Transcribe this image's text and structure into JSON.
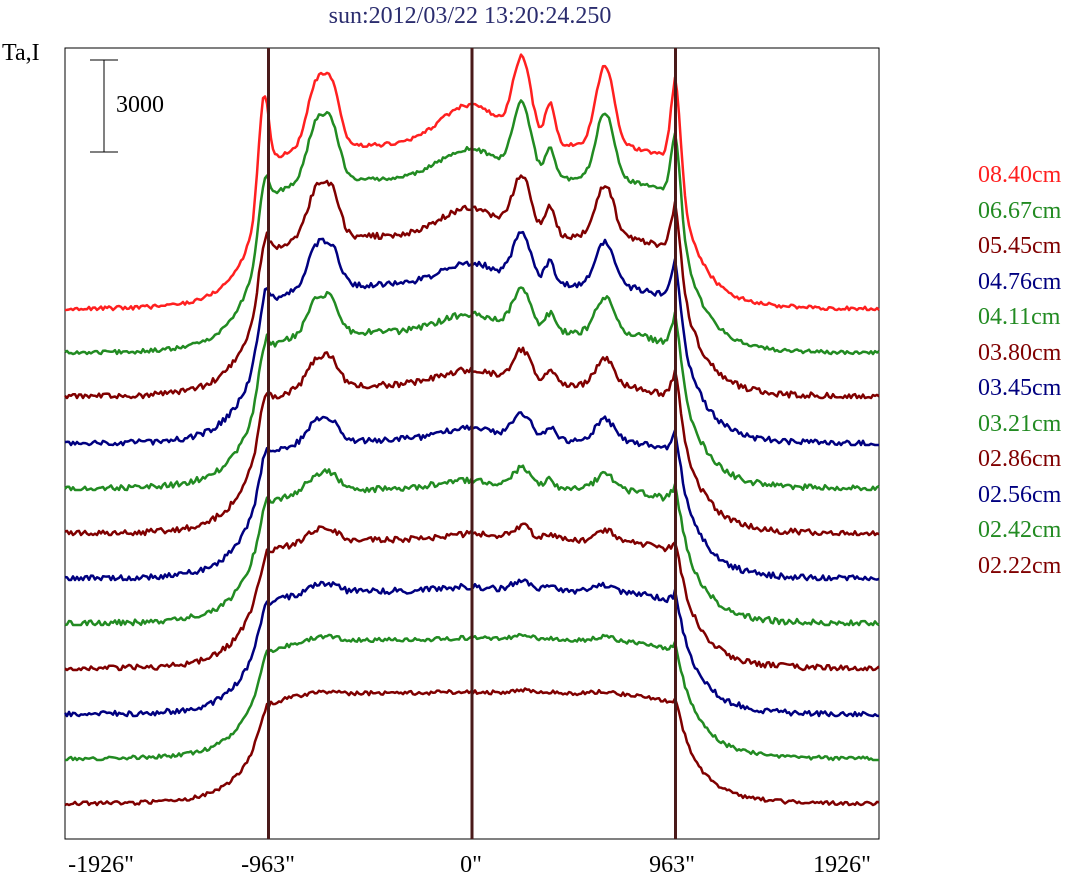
{
  "chart_data": {
    "type": "line",
    "title": "sun:2012/03/22 13:20:24.250",
    "ylabel": "Ta,I",
    "scale_bar_label": "3000",
    "scale_bar_value": 3000,
    "x_ticks": [
      "-1926\"",
      "-963\"",
      "0\"",
      "963\"",
      "1926\""
    ],
    "x_tick_values": [
      -1926,
      -963,
      0,
      963,
      1926
    ],
    "xlim": [
      -1926,
      1926
    ],
    "vertical_lines_at": [
      -963,
      0,
      963
    ],
    "legend": [
      {
        "label": "08.40cm",
        "color": "#ff2020"
      },
      {
        "label": "06.67cm",
        "color": "#228b22"
      },
      {
        "label": "05.45cm",
        "color": "#800000"
      },
      {
        "label": "04.76cm",
        "color": "#000080"
      },
      {
        "label": "04.11cm",
        "color": "#228b22"
      },
      {
        "label": "03.80cm",
        "color": "#800000"
      },
      {
        "label": "03.45cm",
        "color": "#000080"
      },
      {
        "label": "03.21cm",
        "color": "#228b22"
      },
      {
        "label": "02.86cm",
        "color": "#800000"
      },
      {
        "label": "02.56cm",
        "color": "#000080"
      },
      {
        "label": "02.42cm",
        "color": "#228b22"
      },
      {
        "label": "02.22cm",
        "color": "#800000"
      }
    ],
    "series": [
      {
        "color": "#ff2020",
        "baseline": 310,
        "disk": 165,
        "limb": 150,
        "peakL": 90,
        "peakR": 85,
        "ar": [
          60,
          40,
          80,
          80
        ],
        "noise": 2
      },
      {
        "color": "#228b22",
        "baseline": 354,
        "disk": 175,
        "limb": 195,
        "peakL": 40,
        "peakR": 65,
        "ar": [
          55,
          30,
          70,
          68
        ],
        "noise": 2
      },
      {
        "color": "#800000",
        "baseline": 398,
        "disk": 162,
        "limb": 195,
        "peakL": 32,
        "peakR": 50,
        "ar": [
          46,
          28,
          55,
          52
        ],
        "noise": 3
      },
      {
        "color": "#000080",
        "baseline": 445,
        "disk": 160,
        "limb": 190,
        "peakL": 28,
        "peakR": 42,
        "ar": [
          38,
          22,
          48,
          45
        ],
        "noise": 3
      },
      {
        "color": "#228b22",
        "baseline": 490,
        "disk": 158,
        "limb": 180,
        "peakL": 24,
        "peakR": 34,
        "ar": [
          32,
          18,
          40,
          36
        ],
        "noise": 3
      },
      {
        "color": "#800000",
        "baseline": 535,
        "disk": 150,
        "limb": 172,
        "peakL": 20,
        "peakR": 28,
        "ar": [
          26,
          15,
          32,
          28
        ],
        "noise": 3
      },
      {
        "color": "#000080",
        "baseline": 580,
        "disk": 140,
        "limb": 162,
        "peakL": 16,
        "peakR": 22,
        "ar": [
          20,
          12,
          25,
          22
        ],
        "noise": 3
      },
      {
        "color": "#228b22",
        "baseline": 625,
        "disk": 136,
        "limb": 150,
        "peakL": 12,
        "peakR": 17,
        "ar": [
          15,
          9,
          19,
          16
        ],
        "noise": 3
      },
      {
        "color": "#800000",
        "baseline": 670,
        "disk": 130,
        "limb": 140,
        "peakL": 10,
        "peakR": 12,
        "ar": [
          11,
          6,
          13,
          11
        ],
        "noise": 3
      },
      {
        "color": "#000080",
        "baseline": 716,
        "disk": 125,
        "limb": 130,
        "peakL": 8,
        "peakR": 10,
        "ar": [
          7,
          4,
          9,
          7
        ],
        "noise": 3
      },
      {
        "color": "#228b22",
        "baseline": 760,
        "disk": 120,
        "limb": 120,
        "peakL": 6,
        "peakR": 7,
        "ar": [
          4,
          2,
          5,
          4
        ],
        "noise": 2
      },
      {
        "color": "#800000",
        "baseline": 805,
        "disk": 112,
        "limb": 110,
        "peakL": 4,
        "peakR": 5,
        "ar": [
          2,
          1,
          3,
          2
        ],
        "noise": 2
      }
    ]
  }
}
